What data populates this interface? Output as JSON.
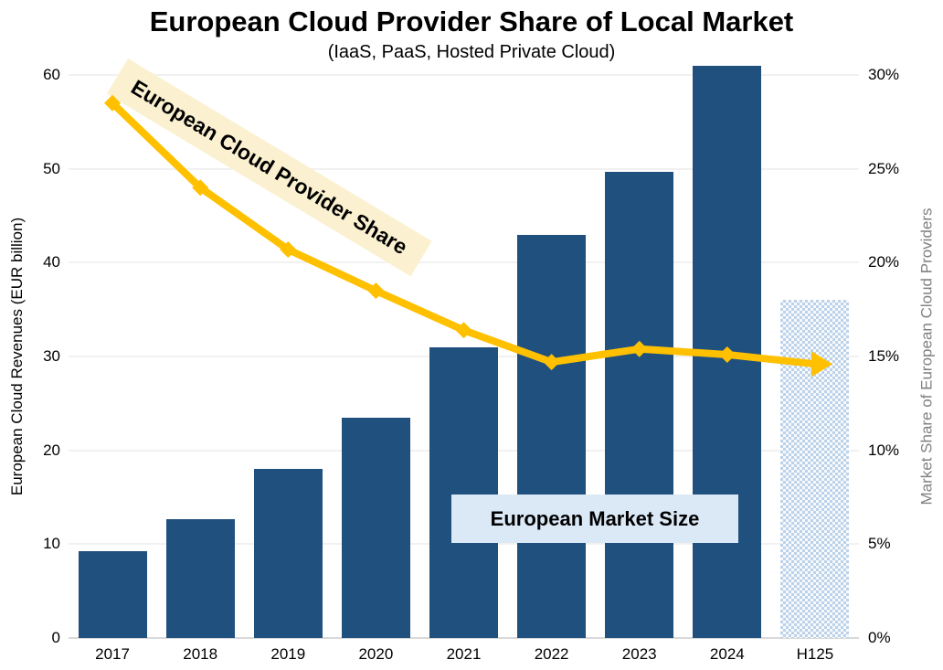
{
  "title": "European Cloud Provider Share of Local Market",
  "subtitle": "(IaaS, PaaS, Hosted Private Cloud)",
  "left_axis": {
    "title": "European Cloud Revenues (EUR billion)",
    "tick_values": [
      0,
      10,
      20,
      30,
      40,
      50,
      60
    ],
    "tick_labels": [
      "0",
      "10",
      "20",
      "30",
      "40",
      "50",
      "60"
    ],
    "max": 60
  },
  "right_axis": {
    "title": "Market Share of European Cloud Providers",
    "tick_values": [
      0,
      5,
      10,
      15,
      20,
      25,
      30
    ],
    "tick_labels": [
      "0%",
      "5%",
      "10%",
      "15%",
      "20%",
      "25%",
      "30%"
    ],
    "max": 30
  },
  "annotations": {
    "line_label": "European Cloud Provider Share",
    "bar_label": "European Market Size"
  },
  "colors": {
    "bar": "#20507E",
    "line": "#FFC000",
    "line_label_bg": "#FBF1D0",
    "bar_label_bg": "#DBE9F7",
    "forecast_bar_pattern": "#BCD2E8",
    "gridline": "#F1F1F1",
    "baseline": "#D9D9D9",
    "right_axis_title_color": "#808080"
  },
  "chart_data": {
    "type": "bar+line combo",
    "categories": [
      "2017",
      "2018",
      "2019",
      "2020",
      "2021",
      "2022",
      "2023",
      "2024",
      "H125"
    ],
    "series": [
      {
        "name": "European Market Size (EUR billion)",
        "type": "bar",
        "axis": "left",
        "values": [
          9.3,
          12.7,
          18,
          23.5,
          31,
          43,
          49.7,
          61,
          36
        ],
        "pattern_indices": [
          8
        ]
      },
      {
        "name": "European Cloud Provider Share (%)",
        "type": "line",
        "axis": "right",
        "values": [
          28.5,
          24,
          20.7,
          18.5,
          16.4,
          14.7,
          15.4,
          15.1,
          14.6
        ],
        "arrow_end": true
      }
    ],
    "left_ylim": [
      0,
      60
    ],
    "right_ylim": [
      0,
      30
    ],
    "grid": true,
    "legend_position": "inline annotations"
  }
}
